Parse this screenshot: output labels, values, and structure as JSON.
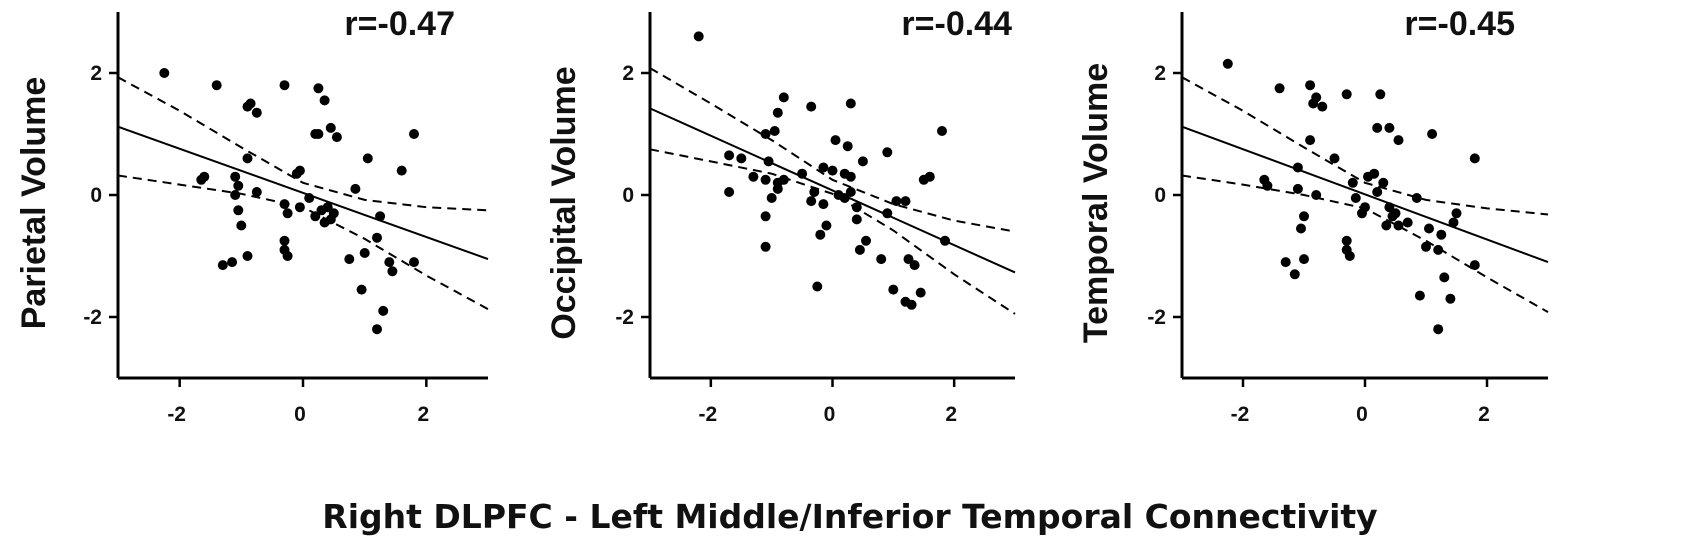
{
  "figure": {
    "shared_xlabel": "Right DLPFC - Left Middle/Inferior Temporal Connectivity"
  },
  "chart_data": [
    {
      "type": "scatter",
      "title": "",
      "annotation": "r=-0.47",
      "xlabel": "",
      "ylabel": "Parietal Volume",
      "xlim": [
        -3,
        3
      ],
      "ylim": [
        -3,
        3
      ],
      "xticks": [
        -2,
        0,
        2
      ],
      "yticks": [
        -2,
        0,
        2
      ],
      "xtick_labels": [
        "-2",
        "0",
        "2"
      ],
      "ytick_labels": [
        "-2",
        "0",
        "2"
      ],
      "grid": false,
      "fit_line": {
        "x": [
          -3,
          3
        ],
        "y": [
          1.12,
          -1.05
        ]
      },
      "ci_lower": [
        [
          -3,
          0.32
        ],
        [
          -2,
          0.17
        ],
        [
          -1,
          0.02
        ],
        [
          0,
          -0.2
        ],
        [
          1,
          -0.72
        ],
        [
          2,
          -1.32
        ],
        [
          3,
          -1.87
        ]
      ],
      "ci_upper": [
        [
          -3,
          1.93
        ],
        [
          -2,
          1.38
        ],
        [
          -1,
          0.78
        ],
        [
          0,
          0.2
        ],
        [
          1,
          -0.08
        ],
        [
          2,
          -0.2
        ],
        [
          3,
          -0.25
        ]
      ],
      "points": [
        [
          -2.25,
          2.0
        ],
        [
          -1.4,
          1.8
        ],
        [
          -0.9,
          1.45
        ],
        [
          -0.85,
          1.5
        ],
        [
          -0.75,
          1.35
        ],
        [
          -0.9,
          0.6
        ],
        [
          -1.65,
          0.25
        ],
        [
          -1.6,
          0.3
        ],
        [
          -1.1,
          0.3
        ],
        [
          -1.05,
          0.15
        ],
        [
          -1.1,
          0.0
        ],
        [
          -1.05,
          -0.25
        ],
        [
          -1.0,
          -0.5
        ],
        [
          -0.9,
          -1.0
        ],
        [
          -1.3,
          -1.15
        ],
        [
          -1.15,
          -1.1
        ],
        [
          -0.75,
          0.05
        ],
        [
          -0.3,
          1.8
        ],
        [
          0.25,
          1.75
        ],
        [
          0.35,
          1.55
        ],
        [
          0.2,
          1.0
        ],
        [
          0.25,
          1.0
        ],
        [
          0.45,
          1.1
        ],
        [
          0.55,
          0.95
        ],
        [
          -0.05,
          0.4
        ],
        [
          -0.1,
          0.35
        ],
        [
          -0.3,
          -0.15
        ],
        [
          -0.25,
          -0.3
        ],
        [
          -0.05,
          -0.2
        ],
        [
          0.1,
          -0.05
        ],
        [
          0.3,
          -0.25
        ],
        [
          0.2,
          -0.35
        ],
        [
          0.4,
          -0.2
        ],
        [
          0.45,
          -0.4
        ],
        [
          0.5,
          -0.3
        ],
        [
          0.35,
          -0.45
        ],
        [
          -0.3,
          -0.75
        ],
        [
          -0.3,
          -0.9
        ],
        [
          -0.25,
          -1.0
        ],
        [
          1.05,
          0.6
        ],
        [
          0.85,
          0.1
        ],
        [
          1.6,
          0.4
        ],
        [
          1.8,
          1.0
        ],
        [
          1.25,
          -0.35
        ],
        [
          1.2,
          -0.7
        ],
        [
          1.0,
          -0.95
        ],
        [
          0.75,
          -1.05
        ],
        [
          1.4,
          -1.1
        ],
        [
          1.45,
          -1.25
        ],
        [
          1.8,
          -1.1
        ],
        [
          0.95,
          -1.55
        ],
        [
          1.3,
          -1.9
        ],
        [
          1.2,
          -2.2
        ]
      ]
    },
    {
      "type": "scatter",
      "title": "",
      "annotation": "r=-0.44",
      "xlabel": "",
      "ylabel": "Occipital Volume",
      "xlim": [
        -3,
        3
      ],
      "ylim": [
        -3,
        3
      ],
      "xticks": [
        -2,
        0,
        2
      ],
      "yticks": [
        -2,
        0,
        2
      ],
      "xtick_labels": [
        "-2",
        "0",
        "2"
      ],
      "ytick_labels": [
        "-2",
        "0",
        "2"
      ],
      "grid": false,
      "fit_line": {
        "x": [
          -3,
          3
        ],
        "y": [
          1.42,
          -1.27
        ]
      },
      "ci_lower": [
        [
          -3,
          0.75
        ],
        [
          -2,
          0.55
        ],
        [
          -1,
          0.35
        ],
        [
          0,
          0.02
        ],
        [
          1,
          -0.58
        ],
        [
          2,
          -1.3
        ],
        [
          3,
          -1.95
        ]
      ],
      "ci_upper": [
        [
          -3,
          2.08
        ],
        [
          -2,
          1.5
        ],
        [
          -1,
          0.9
        ],
        [
          0,
          0.25
        ],
        [
          1,
          -0.15
        ],
        [
          2,
          -0.42
        ],
        [
          3,
          -0.6
        ]
      ],
      "points": [
        [
          -2.2,
          2.6
        ],
        [
          -0.8,
          1.6
        ],
        [
          -0.9,
          1.35
        ],
        [
          -0.35,
          1.45
        ],
        [
          0.3,
          1.5
        ],
        [
          -0.95,
          1.05
        ],
        [
          -1.1,
          1.0
        ],
        [
          0.05,
          0.9
        ],
        [
          0.25,
          0.8
        ],
        [
          -1.7,
          0.65
        ],
        [
          -1.5,
          0.6
        ],
        [
          -1.05,
          0.55
        ],
        [
          -1.3,
          0.3
        ],
        [
          -1.1,
          0.25
        ],
        [
          -0.9,
          0.2
        ],
        [
          -0.8,
          0.25
        ],
        [
          -0.5,
          0.35
        ],
        [
          -0.15,
          0.45
        ],
        [
          0.0,
          0.4
        ],
        [
          0.2,
          0.35
        ],
        [
          0.3,
          0.3
        ],
        [
          0.5,
          0.55
        ],
        [
          0.9,
          0.7
        ],
        [
          -0.9,
          0.1
        ],
        [
          -1.0,
          -0.05
        ],
        [
          -0.3,
          0.05
        ],
        [
          0.1,
          0.0
        ],
        [
          0.2,
          -0.05
        ],
        [
          0.3,
          0.05
        ],
        [
          0.4,
          -0.2
        ],
        [
          -0.35,
          -0.1
        ],
        [
          -0.15,
          -0.15
        ],
        [
          -1.7,
          0.05
        ],
        [
          -1.1,
          -0.35
        ],
        [
          -0.1,
          -0.5
        ],
        [
          -0.2,
          -0.65
        ],
        [
          0.4,
          -0.4
        ],
        [
          0.55,
          -0.75
        ],
        [
          0.9,
          -0.3
        ],
        [
          1.05,
          -0.1
        ],
        [
          1.2,
          -0.1
        ],
        [
          1.5,
          0.25
        ],
        [
          1.6,
          0.3
        ],
        [
          1.8,
          1.05
        ],
        [
          -1.1,
          -0.85
        ],
        [
          0.45,
          -0.9
        ],
        [
          0.8,
          -1.05
        ],
        [
          1.25,
          -1.05
        ],
        [
          1.35,
          -1.15
        ],
        [
          1.0,
          -1.55
        ],
        [
          1.45,
          -1.6
        ],
        [
          1.2,
          -1.75
        ],
        [
          1.3,
          -1.8
        ],
        [
          -0.25,
          -1.5
        ],
        [
          1.85,
          -0.75
        ]
      ]
    },
    {
      "type": "scatter",
      "title": "",
      "annotation": "r=-0.45",
      "xlabel": "",
      "ylabel": "Temporal Volume",
      "xlim": [
        -3,
        3
      ],
      "ylim": [
        -3,
        3
      ],
      "xticks": [
        -2,
        0,
        2
      ],
      "yticks": [
        -2,
        0,
        2
      ],
      "xtick_labels": [
        "-2",
        "0",
        "2"
      ],
      "ytick_labels": [
        "-2",
        "0",
        "2"
      ],
      "grid": false,
      "fit_line": {
        "x": [
          -3,
          3
        ],
        "y": [
          1.12,
          -1.1
        ]
      },
      "ci_lower": [
        [
          -3,
          0.32
        ],
        [
          -2,
          0.17
        ],
        [
          -1,
          0.0
        ],
        [
          0,
          -0.22
        ],
        [
          1,
          -0.75
        ],
        [
          2,
          -1.35
        ],
        [
          3,
          -1.92
        ]
      ],
      "ci_upper": [
        [
          -3,
          1.93
        ],
        [
          -2,
          1.38
        ],
        [
          -1,
          0.78
        ],
        [
          0,
          0.2
        ],
        [
          1,
          -0.08
        ],
        [
          2,
          -0.22
        ],
        [
          3,
          -0.32
        ]
      ],
      "points": [
        [
          -2.25,
          2.15
        ],
        [
          -1.4,
          1.75
        ],
        [
          -0.9,
          1.8
        ],
        [
          -0.85,
          1.5
        ],
        [
          -0.8,
          1.6
        ],
        [
          -0.7,
          1.45
        ],
        [
          -0.3,
          1.65
        ],
        [
          0.25,
          1.65
        ],
        [
          0.2,
          1.1
        ],
        [
          0.4,
          1.1
        ],
        [
          0.55,
          0.9
        ],
        [
          1.1,
          1.0
        ],
        [
          1.8,
          0.6
        ],
        [
          -0.9,
          0.9
        ],
        [
          -0.5,
          0.6
        ],
        [
          -1.1,
          0.45
        ],
        [
          -1.65,
          0.25
        ],
        [
          -1.6,
          0.15
        ],
        [
          -1.1,
          0.1
        ],
        [
          -0.8,
          0.0
        ],
        [
          -0.2,
          0.2
        ],
        [
          0.05,
          0.3
        ],
        [
          0.15,
          0.35
        ],
        [
          0.2,
          0.05
        ],
        [
          0.3,
          0.2
        ],
        [
          -0.15,
          -0.05
        ],
        [
          0.0,
          -0.2
        ],
        [
          -0.05,
          -0.3
        ],
        [
          0.4,
          -0.2
        ],
        [
          0.45,
          -0.35
        ],
        [
          0.5,
          -0.3
        ],
        [
          0.35,
          -0.5
        ],
        [
          0.55,
          -0.5
        ],
        [
          0.7,
          -0.45
        ],
        [
          0.85,
          -0.05
        ],
        [
          -1.0,
          -0.35
        ],
        [
          -1.05,
          -0.55
        ],
        [
          -1.0,
          -1.05
        ],
        [
          -1.3,
          -1.1
        ],
        [
          -1.15,
          -1.3
        ],
        [
          -0.3,
          -0.75
        ],
        [
          -0.3,
          -0.9
        ],
        [
          -0.25,
          -1.0
        ],
        [
          1.05,
          -0.55
        ],
        [
          1.25,
          -0.65
        ],
        [
          1.0,
          -0.85
        ],
        [
          1.2,
          -0.9
        ],
        [
          1.5,
          -0.3
        ],
        [
          1.45,
          -0.45
        ],
        [
          1.3,
          -1.35
        ],
        [
          1.8,
          -1.15
        ],
        [
          0.9,
          -1.65
        ],
        [
          1.4,
          -1.7
        ],
        [
          1.2,
          -2.2
        ]
      ]
    }
  ]
}
